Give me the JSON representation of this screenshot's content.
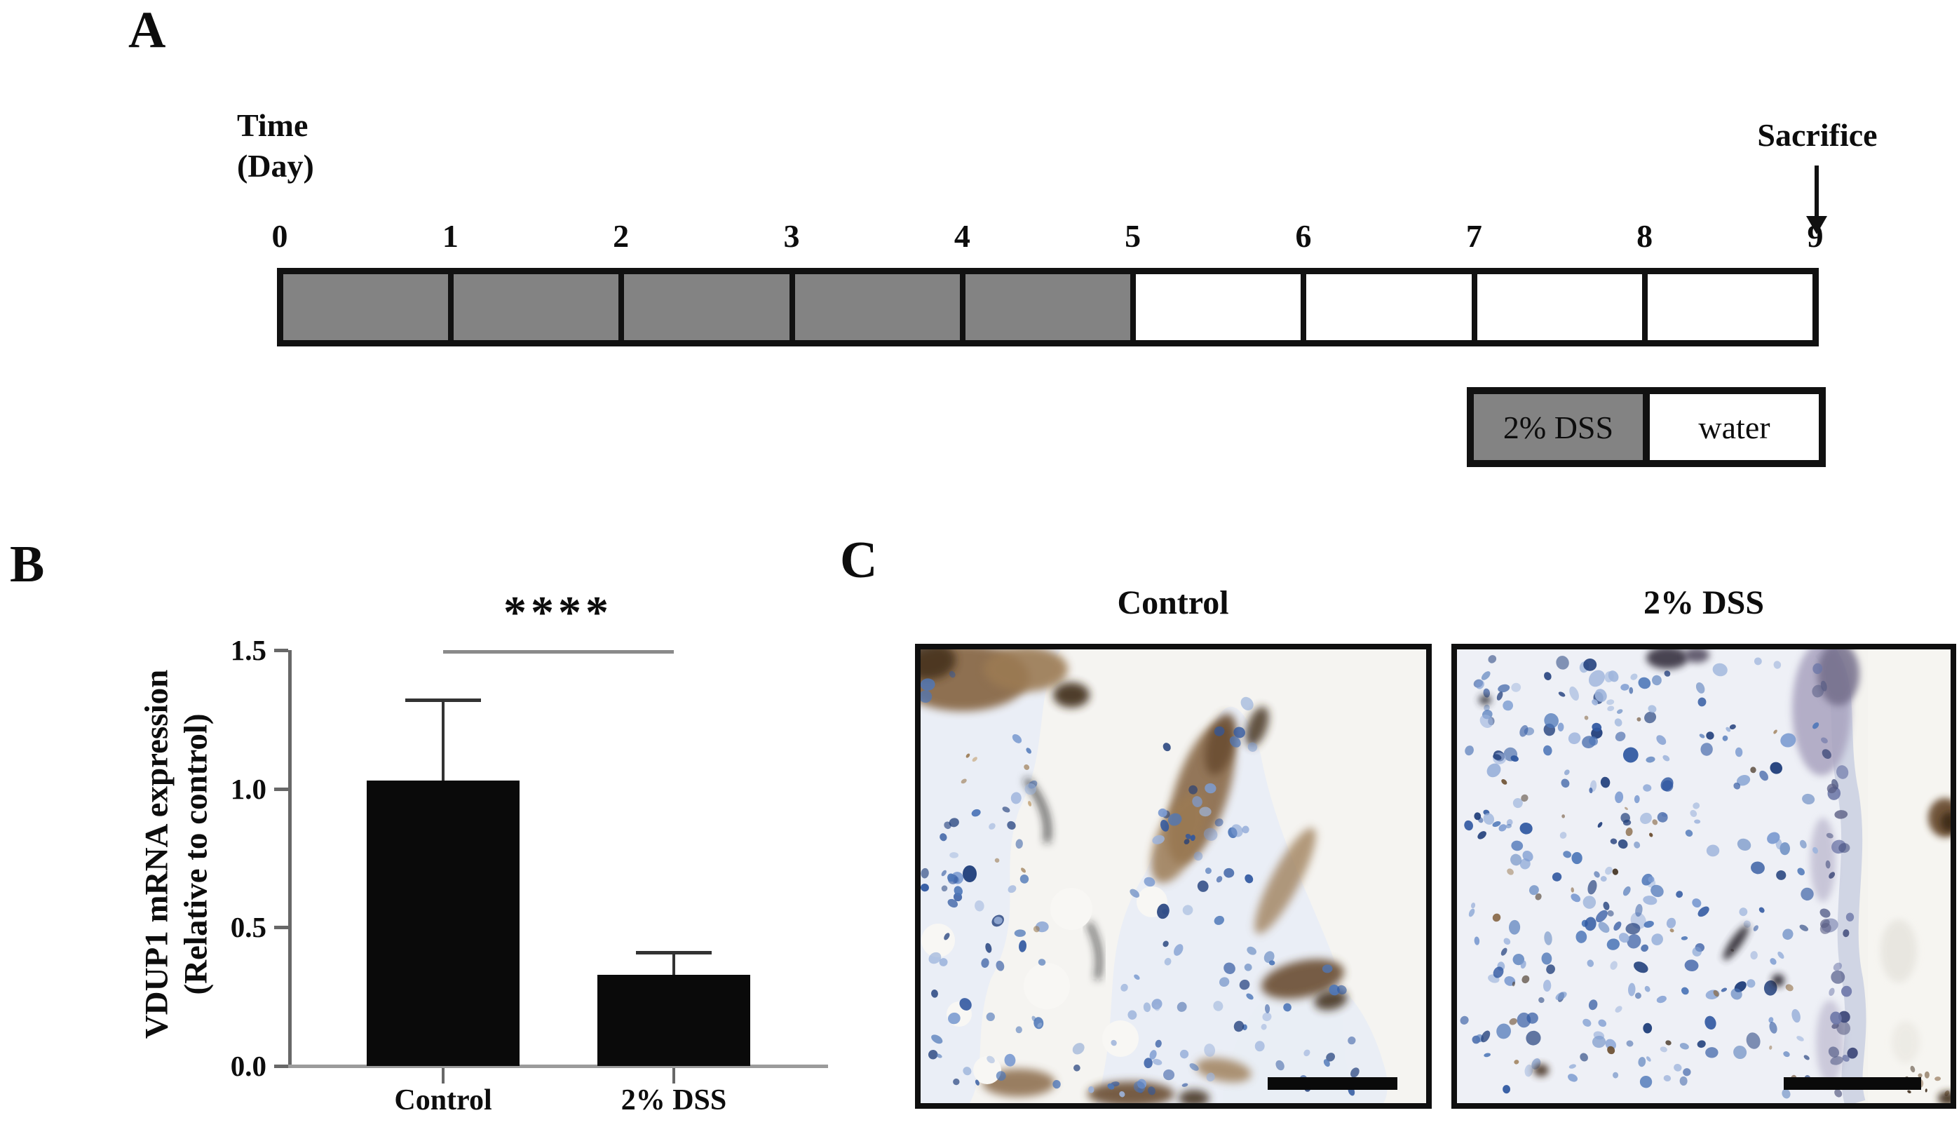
{
  "panels": {
    "a": {
      "label": "A",
      "axis_title_lines": [
        "Time",
        "(Day)"
      ],
      "day_labels": [
        "0",
        "1",
        "2",
        "3",
        "4",
        "5",
        "6",
        "7",
        "8",
        "9"
      ],
      "dss_days": 5,
      "sacrifice_label": "Sacrifice",
      "legend": {
        "dss_label": "2% DSS",
        "water_label": "water"
      },
      "colors": {
        "dss_fill": "#838383",
        "water_fill": "#ffffff",
        "border": "#111111"
      }
    },
    "b": {
      "label": "B"
    },
    "c": {
      "label": "C",
      "micrographs": [
        {
          "title": "Control"
        },
        {
          "title": "2% DSS"
        }
      ],
      "colors": {
        "background": "#f5f4f1",
        "tissue": "#e9edf5",
        "nuclei_blues": [
          "#9db4dc",
          "#7d9cd1",
          "#4e77b8",
          "#2f57a0",
          "#1f3d7a"
        ],
        "dab_browns": [
          "#c7a87e",
          "#9b7a52",
          "#8a6b4a",
          "#6b4e30",
          "#3c2a18"
        ],
        "epithelium_purples": [
          "#a9a3bf",
          "#736d8a",
          "#5b5f85",
          "#6d77a8",
          "#3f4a7a"
        ],
        "scale_bar": "#0a0a0a"
      }
    }
  },
  "chart_data": {
    "type": "bar",
    "title": "",
    "categories": [
      "Control",
      "2% DSS"
    ],
    "values": [
      1.03,
      0.33
    ],
    "error_up": [
      0.29,
      0.08
    ],
    "ylabel": "VDUP1 mRNA expression (Relative to control)",
    "ylabel_lines": [
      "VDUP1 mRNA expression",
      "(Relative to control)"
    ],
    "xlabel": "",
    "yticks": [
      0.0,
      0.5,
      1.0,
      1.5
    ],
    "ytick_labels": [
      "0.0",
      "0.5",
      "1.0",
      "1.5"
    ],
    "ylim": [
      0.0,
      1.5
    ],
    "grid": false,
    "legend_position": "none",
    "bar_color": "#0a0a0a",
    "significance": {
      "label": "****",
      "between": [
        "Control",
        "2% DSS"
      ],
      "level_y": 1.5
    }
  }
}
